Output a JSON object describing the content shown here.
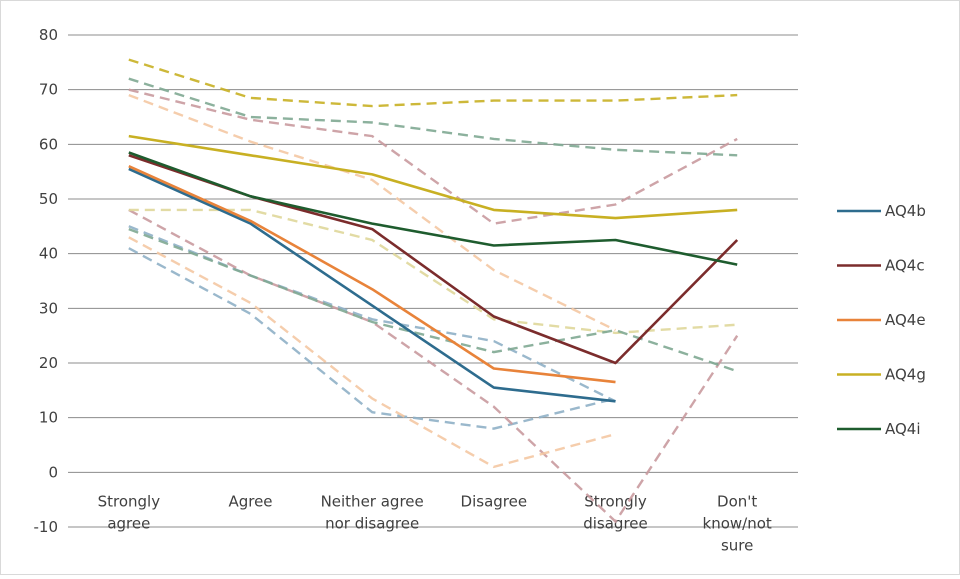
{
  "chart_data": {
    "type": "line",
    "title": "",
    "xlabel": "",
    "ylabel": "",
    "ylim": [
      -10,
      80
    ],
    "yticks": [
      80,
      70,
      60,
      50,
      40,
      30,
      20,
      10,
      0,
      -10
    ],
    "grid": true,
    "legend_position": "right",
    "categories": [
      [
        "Strongly",
        "agree"
      ],
      [
        "Agree"
      ],
      [
        "Neither agree",
        "nor disagree"
      ],
      [
        "Disagree"
      ],
      [
        "Strongly",
        "disagree"
      ],
      [
        "Don't",
        "know/not",
        "sure"
      ]
    ],
    "series": [
      {
        "name": "AQ4b",
        "color": "#2e6c8e",
        "values": [
          55.5,
          45.5,
          30.5,
          15.5,
          13.0,
          null
        ]
      },
      {
        "name": "AQ4c",
        "color": "#7b2c2c",
        "values": [
          58.0,
          50.5,
          44.5,
          28.5,
          20.0,
          42.5
        ]
      },
      {
        "name": "AQ4e",
        "color": "#e8833a",
        "values": [
          56.0,
          46.0,
          33.5,
          19.0,
          16.5,
          null
        ]
      },
      {
        "name": "AQ4g",
        "color": "#c8b023",
        "values": [
          61.5,
          58.0,
          54.5,
          48.0,
          46.5,
          48.0
        ]
      },
      {
        "name": "AQ4i",
        "color": "#1e5c2e",
        "values": [
          58.5,
          50.5,
          45.5,
          41.5,
          42.5,
          38.0
        ]
      }
    ],
    "bound_series": [
      {
        "color": "#8fb0c6",
        "values": [
          45.0,
          36.0,
          28.0,
          24.0,
          13.0,
          null
        ]
      },
      {
        "color": "#8fb0c6",
        "values": [
          41.0,
          29.0,
          11.0,
          8.0,
          13.5,
          null
        ]
      },
      {
        "color": "#c99a9f",
        "values": [
          70.0,
          64.5,
          61.5,
          45.5,
          49.0,
          61.0
        ]
      },
      {
        "color": "#c99a9f",
        "values": [
          48.0,
          36.0,
          27.5,
          12.0,
          -9.0,
          25.0
        ]
      },
      {
        "color": "#f4c8a3",
        "values": [
          69.0,
          60.5,
          53.5,
          37.0,
          26.0,
          null
        ]
      },
      {
        "color": "#f4c8a3",
        "values": [
          43.0,
          31.0,
          13.5,
          1.0,
          7.0,
          null
        ]
      },
      {
        "color": "#c8b023",
        "values": [
          75.5,
          68.5,
          67.0,
          68.0,
          68.0,
          69.0
        ]
      },
      {
        "color": "#dfd79a",
        "values": [
          48.0,
          48.0,
          42.5,
          28.0,
          25.5,
          27.0
        ]
      },
      {
        "color": "#7fa892",
        "values": [
          72.0,
          65.0,
          64.0,
          61.0,
          59.0,
          58.0
        ]
      },
      {
        "color": "#7fa892",
        "values": [
          44.5,
          36.0,
          27.5,
          22.0,
          26.0,
          18.5
        ]
      }
    ]
  }
}
